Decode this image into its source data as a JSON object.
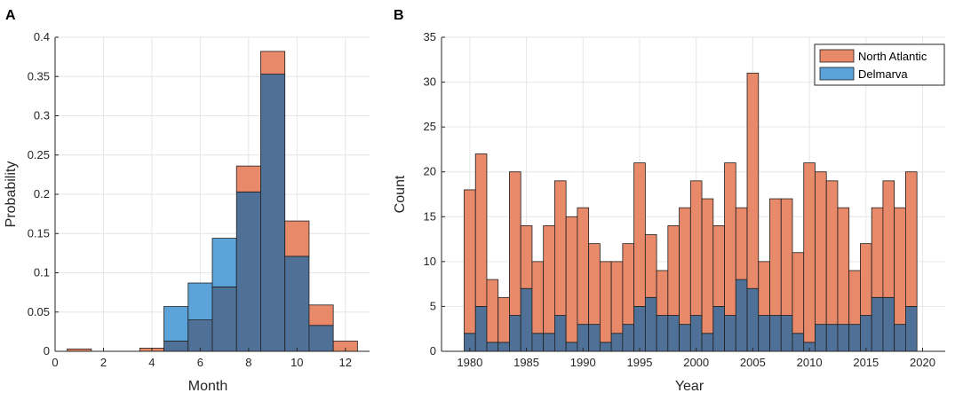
{
  "colors": {
    "north_atlantic": "#E8896A",
    "delmarva": "#5BA3D8",
    "overlap": "#4F7197",
    "edge": "#1f1f1f"
  },
  "chart_data": [
    {
      "panel": "A",
      "type": "bar",
      "xlabel": "Month",
      "ylabel": "Probability",
      "xlim": [
        0,
        13
      ],
      "ylim": [
        0,
        0.4
      ],
      "xticks": [
        0,
        2,
        4,
        6,
        8,
        10,
        12
      ],
      "yticks": [
        0,
        0.05,
        0.1,
        0.15,
        0.2,
        0.25,
        0.3,
        0.35,
        0.4
      ],
      "ytick_labels": [
        "0",
        "0.05",
        "0.1",
        "0.15",
        "0.2",
        "0.25",
        "0.3",
        "0.35",
        "0.4"
      ],
      "bin_width": 1,
      "series": [
        {
          "name": "North Atlantic",
          "x": [
            1,
            2,
            3,
            4,
            5,
            6,
            7,
            8,
            9,
            10,
            11,
            12
          ],
          "values": [
            0.003,
            0,
            0,
            0.004,
            0.013,
            0.04,
            0.082,
            0.236,
            0.382,
            0.166,
            0.059,
            0.013
          ]
        },
        {
          "name": "Delmarva",
          "x": [
            1,
            2,
            3,
            4,
            5,
            6,
            7,
            8,
            9,
            10,
            11,
            12
          ],
          "values": [
            0,
            0,
            0,
            0,
            0.057,
            0.087,
            0.144,
            0.203,
            0.353,
            0.121,
            0.033,
            0
          ]
        }
      ]
    },
    {
      "panel": "B",
      "type": "bar",
      "xlabel": "Year",
      "ylabel": "Count",
      "xlim": [
        1977.5,
        2022
      ],
      "ylim": [
        0,
        35
      ],
      "xticks": [
        1980,
        1985,
        1990,
        1995,
        2000,
        2005,
        2010,
        2015,
        2020
      ],
      "yticks": [
        0,
        5,
        10,
        15,
        20,
        25,
        30,
        35
      ],
      "bin_width": 1,
      "legend_position": "top-right",
      "series": [
        {
          "name": "North Atlantic",
          "x": [
            1980,
            1981,
            1982,
            1983,
            1984,
            1985,
            1986,
            1987,
            1988,
            1989,
            1990,
            1991,
            1992,
            1993,
            1994,
            1995,
            1996,
            1997,
            1998,
            1999,
            2000,
            2001,
            2002,
            2003,
            2004,
            2005,
            2006,
            2007,
            2008,
            2009,
            2010,
            2011,
            2012,
            2013,
            2014,
            2015,
            2016,
            2017,
            2018,
            2019
          ],
          "values": [
            18,
            22,
            8,
            6,
            20,
            14,
            10,
            14,
            19,
            15,
            16,
            12,
            10,
            10,
            12,
            21,
            13,
            9,
            14,
            16,
            19,
            17,
            14,
            21,
            16,
            31,
            10,
            17,
            17,
            11,
            21,
            20,
            19,
            16,
            9,
            12,
            16,
            19,
            16,
            20
          ]
        },
        {
          "name": "Delmarva",
          "x": [
            1980,
            1981,
            1982,
            1983,
            1984,
            1985,
            1986,
            1987,
            1988,
            1989,
            1990,
            1991,
            1992,
            1993,
            1994,
            1995,
            1996,
            1997,
            1998,
            1999,
            2000,
            2001,
            2002,
            2003,
            2004,
            2005,
            2006,
            2007,
            2008,
            2009,
            2010,
            2011,
            2012,
            2013,
            2014,
            2015,
            2016,
            2017,
            2018,
            2019
          ],
          "values": [
            2,
            5,
            1,
            1,
            4,
            7,
            2,
            2,
            4,
            1,
            3,
            3,
            1,
            2,
            3,
            5,
            6,
            4,
            4,
            3,
            4,
            2,
            5,
            4,
            8,
            7,
            4,
            4,
            4,
            2,
            1,
            3,
            3,
            3,
            3,
            4,
            6,
            6,
            3,
            5
          ]
        }
      ]
    }
  ]
}
